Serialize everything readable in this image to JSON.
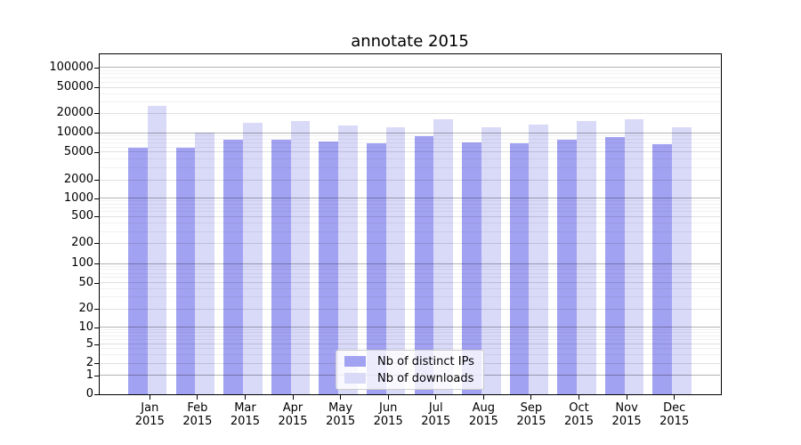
{
  "title": "annotate 2015",
  "legend": {
    "items": [
      {
        "label": "Nb of distinct IPs"
      },
      {
        "label": "Nb of downloads"
      }
    ]
  },
  "colors": {
    "distinct_ips": "#a2a2f2",
    "downloads": "#d9d9f8",
    "grid_major": "#b0b0b0",
    "grid_mid": "#e0e0e0",
    "grid_minor": "#f0f0f0",
    "axis": "#000000"
  },
  "y_axis": {
    "ticks": [
      {
        "value": 100000,
        "label": "100000"
      },
      {
        "value": 50000,
        "label": "50000"
      },
      {
        "value": 20000,
        "label": "20000"
      },
      {
        "value": 10000,
        "label": "10000"
      },
      {
        "value": 5000,
        "label": "5000"
      },
      {
        "value": 2000,
        "label": "2000"
      },
      {
        "value": 1000,
        "label": "1000"
      },
      {
        "value": 500,
        "label": "500"
      },
      {
        "value": 200,
        "label": "200"
      },
      {
        "value": 100,
        "label": "100"
      },
      {
        "value": 50,
        "label": "50"
      },
      {
        "value": 20,
        "label": "20"
      },
      {
        "value": 10,
        "label": "10"
      },
      {
        "value": 5,
        "label": "5"
      },
      {
        "value": 2,
        "label": "2"
      },
      {
        "value": 1,
        "label": "1"
      },
      {
        "value": 0,
        "label": "0"
      }
    ]
  },
  "x_axis": {
    "months": [
      "Jan",
      "Feb",
      "Mar",
      "Apr",
      "May",
      "Jun",
      "Jul",
      "Aug",
      "Sep",
      "Oct",
      "Nov",
      "Dec"
    ],
    "year": "2015"
  },
  "chart_data": {
    "type": "bar",
    "title": "annotate 2015",
    "categories": [
      "Jan 2015",
      "Feb 2015",
      "Mar 2015",
      "Apr 2015",
      "May 2015",
      "Jun 2015",
      "Jul 2015",
      "Aug 2015",
      "Sep 2015",
      "Oct 2015",
      "Nov 2015",
      "Dec 2015"
    ],
    "series": [
      {
        "name": "Nb of distinct IPs",
        "color": "#a2a2f2",
        "values": [
          5900,
          5900,
          7900,
          7700,
          7400,
          6800,
          8800,
          7000,
          6900,
          7900,
          8500,
          6600
        ]
      },
      {
        "name": "Nb of downloads",
        "color": "#d9d9f8",
        "values": [
          26000,
          10000,
          14400,
          15200,
          13000,
          12100,
          16100,
          12400,
          13300,
          15400,
          16200,
          12400
        ]
      }
    ],
    "yscale": "symlog",
    "ylim": [
      0,
      100000
    ],
    "yticks": [
      0,
      1,
      2,
      5,
      10,
      20,
      50,
      100,
      200,
      500,
      1000,
      2000,
      5000,
      10000,
      20000,
      50000,
      100000
    ],
    "xlabel": "",
    "ylabel": "",
    "grid": true,
    "legend_position": "lower center"
  }
}
